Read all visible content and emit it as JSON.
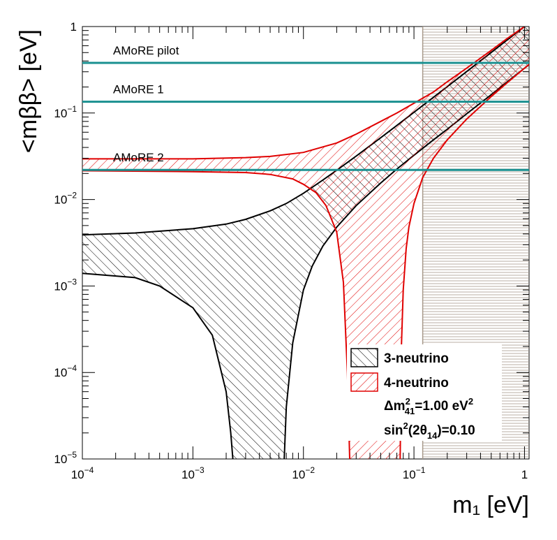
{
  "chart_data": {
    "type": "line",
    "xlabel": "m₁ [eV]",
    "ylabel": "<mββ> [eV]",
    "x_scale": "log",
    "y_scale": "log",
    "xlim": [
      0.0001,
      1.1
    ],
    "ylim": [
      1e-05,
      1.0
    ],
    "x_ticks": [
      {
        "value": 0.0001,
        "base": "10",
        "exp": "−4"
      },
      {
        "value": 0.001,
        "base": "10",
        "exp": "−3"
      },
      {
        "value": 0.01,
        "base": "10",
        "exp": "−2"
      },
      {
        "value": 0.1,
        "base": "10",
        "exp": "−1"
      },
      {
        "value": 1,
        "base": "1",
        "exp": ""
      }
    ],
    "y_ticks": [
      {
        "value": 1e-05,
        "base": "10",
        "exp": "−5"
      },
      {
        "value": 0.0001,
        "base": "10",
        "exp": "−4"
      },
      {
        "value": 0.001,
        "base": "10",
        "exp": "−3"
      },
      {
        "value": 0.01,
        "base": "10",
        "exp": "−2"
      },
      {
        "value": 0.1,
        "base": "10",
        "exp": "−1"
      },
      {
        "value": 1,
        "base": "1",
        "exp": ""
      }
    ],
    "excluded_region": {
      "x_min": 0.12,
      "x_max": 1.1,
      "color": "#a89a8c"
    },
    "sensitivity_lines": [
      {
        "name": "AMoRE pilot",
        "value": 0.38,
        "color": "#1a9090"
      },
      {
        "name": "AMoRE 1",
        "value": 0.135,
        "color": "#1a9090"
      },
      {
        "name": "AMoRE 2",
        "value": 0.022,
        "color": "#1a9090"
      }
    ],
    "series": [
      {
        "name": "3-neutrino",
        "color": "#000000",
        "upper": {
          "x": [
            0.0001,
            0.0003,
            0.001,
            0.002,
            0.003,
            0.005,
            0.007,
            0.01,
            0.015,
            0.02,
            0.03,
            0.05,
            0.07,
            0.1,
            0.15,
            0.2,
            0.3,
            0.5,
            0.7,
            1.0,
            1.1
          ],
          "y": [
            0.0039,
            0.0041,
            0.0046,
            0.0052,
            0.0059,
            0.0074,
            0.009,
            0.0118,
            0.0168,
            0.0218,
            0.0318,
            0.0518,
            0.0718,
            0.102,
            0.152,
            0.202,
            0.302,
            0.502,
            0.702,
            1.0,
            1.1
          ]
        },
        "lower": {
          "x": [
            0.0001,
            0.0003,
            0.0005,
            0.001,
            0.0015,
            0.002,
            0.0022,
            0.0023
          ],
          "y": [
            0.0014,
            0.00125,
            0.001,
            0.00056,
            0.00027,
            6e-05,
            2e-05,
            1e-05
          ]
        },
        "lower_right": {
          "x": [
            0.0067,
            0.007,
            0.008,
            0.01,
            0.012,
            0.015,
            0.02,
            0.03,
            0.05,
            0.07,
            0.1,
            0.15,
            0.2,
            0.3,
            0.5,
            0.7,
            1.0,
            1.1
          ],
          "y": [
            1e-05,
            4e-05,
            0.00022,
            0.0009,
            0.0017,
            0.0029,
            0.0048,
            0.0085,
            0.0155,
            0.0225,
            0.0325,
            0.049,
            0.065,
            0.098,
            0.163,
            0.23,
            0.33,
            0.362
          ]
        }
      },
      {
        "name": "4-neutrino",
        "color": "#e00000",
        "upper": {
          "x": [
            0.0001,
            0.001,
            0.003,
            0.005,
            0.01,
            0.02,
            0.03,
            0.05,
            0.07,
            0.1,
            0.15,
            0.2,
            0.3,
            0.5,
            0.7,
            1.0,
            1.1
          ],
          "y": [
            0.0295,
            0.0295,
            0.0305,
            0.0315,
            0.035,
            0.045,
            0.057,
            0.08,
            0.1,
            0.13,
            0.175,
            0.23,
            0.33,
            0.53,
            0.73,
            1.0,
            1.1
          ]
        },
        "lower": {
          "x": [
            0.0001,
            0.001,
            0.003,
            0.005,
            0.008,
            0.01,
            0.013,
            0.016,
            0.02,
            0.023,
            0.025,
            0.0262
          ],
          "y": [
            0.0215,
            0.021,
            0.0205,
            0.0195,
            0.0173,
            0.015,
            0.012,
            0.0085,
            0.0042,
            0.0011,
            0.0001,
            1e-05
          ]
        },
        "lower_right": {
          "x": [
            0.075,
            0.077,
            0.08,
            0.085,
            0.09,
            0.1,
            0.12,
            0.15,
            0.2,
            0.3,
            0.5,
            0.7,
            1.0,
            1.1
          ],
          "y": [
            1e-05,
            0.0002,
            0.0009,
            0.0027,
            0.0048,
            0.009,
            0.018,
            0.03,
            0.049,
            0.085,
            0.155,
            0.225,
            0.33,
            0.365
          ]
        }
      }
    ],
    "legend": {
      "position": "bottom-right",
      "entries": [
        {
          "label": "3-neutrino",
          "color": "#000000"
        },
        {
          "label": "4-neutrino",
          "color": "#e00000"
        }
      ],
      "param_1": {
        "prefix": "Δm",
        "sup": "2",
        "sub": "41",
        "rest": "=1.00 eV",
        "unit_sup": "2"
      },
      "param_2": {
        "prefix": "sin",
        "sup": "2",
        "mid": "(2θ",
        "sub": "14",
        "rest": ")=0.10"
      }
    }
  }
}
